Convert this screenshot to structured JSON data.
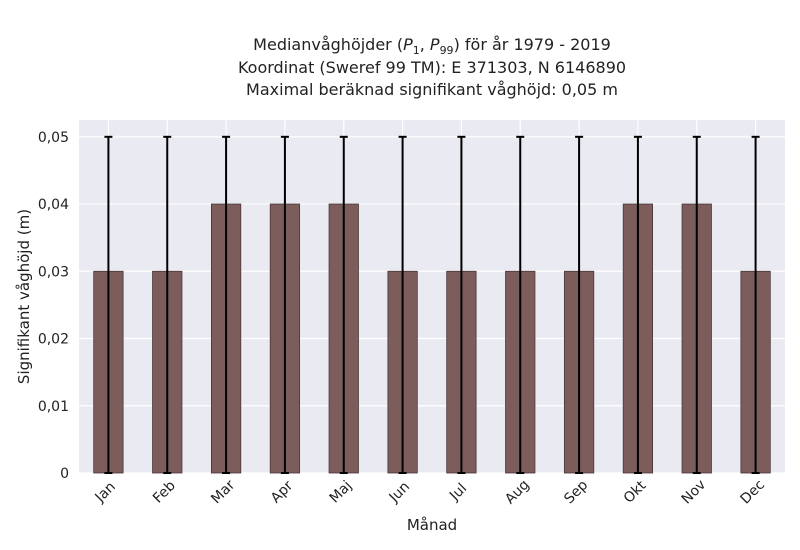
{
  "chart_data": {
    "type": "bar",
    "title_lines": [
      "Medianvåghöjder (P1, P99) för år 1979 - 2019",
      "Koordinat (Sweref 99 TM): E 371303, N 6146890",
      "Maximal beräknad signifikant våghöjd: 0,05 m"
    ],
    "xlabel": "Månad",
    "ylabel": "Signifikant våghöjd (m)",
    "categories": [
      "Jan",
      "Feb",
      "Mar",
      "Apr",
      "Maj",
      "Jun",
      "Jul",
      "Aug",
      "Sep",
      "Okt",
      "Nov",
      "Dec"
    ],
    "values": [
      0.03,
      0.03,
      0.04,
      0.04,
      0.04,
      0.03,
      0.03,
      0.03,
      0.03,
      0.04,
      0.04,
      0.03
    ],
    "error_low": [
      0,
      0,
      0,
      0,
      0,
      0,
      0,
      0,
      0,
      0,
      0,
      0
    ],
    "error_high": [
      0.05,
      0.05,
      0.05,
      0.05,
      0.05,
      0.05,
      0.05,
      0.05,
      0.05,
      0.05,
      0.05,
      0.05
    ],
    "ylim": [
      0,
      0.0525
    ],
    "yticks": [
      0,
      0.01,
      0.02,
      0.03,
      0.04,
      0.05
    ],
    "ytick_labels": [
      "0",
      "0,01",
      "0,02",
      "0,03",
      "0,04",
      "0,05"
    ],
    "grid": true,
    "colors": {
      "bar": "#7d5c5c",
      "bar_edge": "#4a3636",
      "error_bar": "#000000",
      "plot_bg": "#eaeaf2",
      "grid": "#ffffff"
    }
  }
}
